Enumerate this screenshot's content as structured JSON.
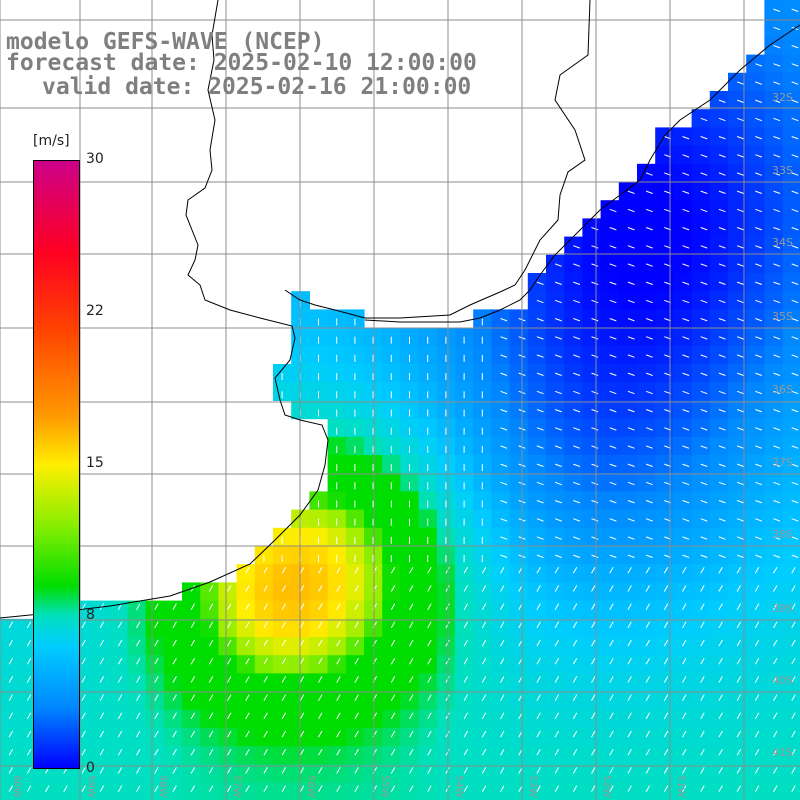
{
  "title": {
    "line1": "modelo GEFS-WAVE (NCEP)",
    "line2": "forecast date: 2025-02-10 12:00:00",
    "line3": "valid date: 2025-02-16 21:00:00"
  },
  "colorbar": {
    "unit": "[m/s]",
    "ticks": [
      "30",
      "22",
      "15",
      "8",
      "0"
    ],
    "range": [
      0,
      30
    ]
  },
  "map": {
    "lat_labels": [
      "32S",
      "33S",
      "34S",
      "35S",
      "36S",
      "37S",
      "38S",
      "39S",
      "40S",
      "41S"
    ],
    "lon_labels": [
      "60W",
      "59W",
      "58W",
      "57W",
      "56W",
      "55W",
      "54W",
      "53W",
      "52W",
      "51W"
    ],
    "colors": {
      "land": "#ffffff",
      "grid": "#8c8c8c",
      "coast": "#000000",
      "arrows": "#ffffff"
    }
  }
}
